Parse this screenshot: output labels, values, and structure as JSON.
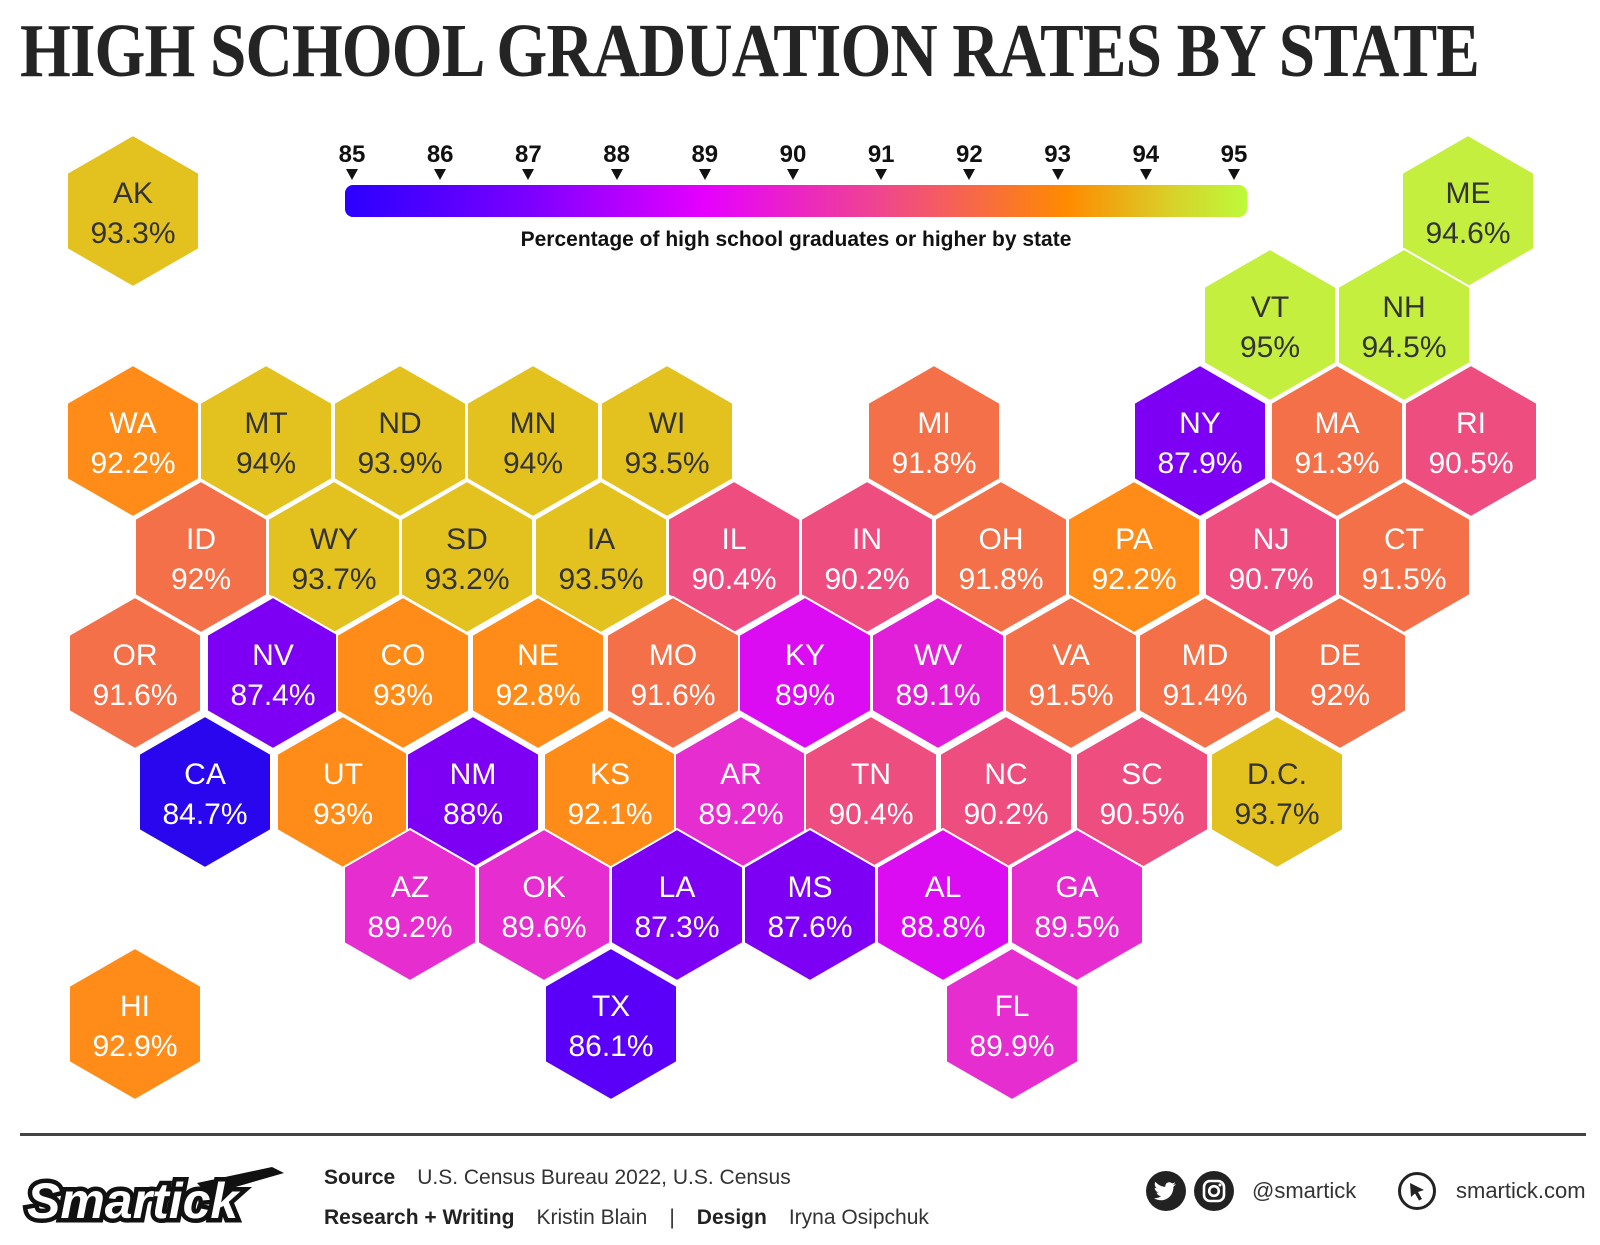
{
  "title": "HIGH SCHOOL GRADUATION RATES BY STATE",
  "legend": {
    "ticks": [
      "85",
      "86",
      "87",
      "88",
      "89",
      "90",
      "91",
      "92",
      "93",
      "94",
      "95"
    ],
    "caption": "Percentage of high school graduates or higher by state",
    "color_stops": [
      "#2a00ff",
      "#7a00ff",
      "#e600ff",
      "#f0488a",
      "#ff8a00",
      "#d7d32a",
      "#bdfa3a"
    ]
  },
  "states": [
    {
      "abbr": "AK",
      "value": "93.3%",
      "color": "#e3c21f"
    },
    {
      "abbr": "ME",
      "value": "94.6%",
      "color": "#c4ef3e"
    },
    {
      "abbr": "VT",
      "value": "95%",
      "color": "#c4ef3e"
    },
    {
      "abbr": "NH",
      "value": "94.5%",
      "color": "#c4ef3e"
    },
    {
      "abbr": "WA",
      "value": "92.2%",
      "color": "#ff8c19"
    },
    {
      "abbr": "MT",
      "value": "94%",
      "color": "#e3c21f"
    },
    {
      "abbr": "ND",
      "value": "93.9%",
      "color": "#e3c21f"
    },
    {
      "abbr": "MN",
      "value": "94%",
      "color": "#e3c21f"
    },
    {
      "abbr": "WI",
      "value": "93.5%",
      "color": "#e3c21f"
    },
    {
      "abbr": "MI",
      "value": "91.8%",
      "color": "#f47049"
    },
    {
      "abbr": "NY",
      "value": "87.9%",
      "color": "#7d00f4"
    },
    {
      "abbr": "MA",
      "value": "91.3%",
      "color": "#f47049"
    },
    {
      "abbr": "RI",
      "value": "90.5%",
      "color": "#ee4d80"
    },
    {
      "abbr": "ID",
      "value": "92%",
      "color": "#f47049"
    },
    {
      "abbr": "WY",
      "value": "93.7%",
      "color": "#e3c21f"
    },
    {
      "abbr": "SD",
      "value": "93.2%",
      "color": "#e3c21f"
    },
    {
      "abbr": "IA",
      "value": "93.5%",
      "color": "#e3c21f"
    },
    {
      "abbr": "IL",
      "value": "90.4%",
      "color": "#ee4d80"
    },
    {
      "abbr": "IN",
      "value": "90.2%",
      "color": "#ee4d80"
    },
    {
      "abbr": "OH",
      "value": "91.8%",
      "color": "#f47049"
    },
    {
      "abbr": "PA",
      "value": "92.2%",
      "color": "#ff8c19"
    },
    {
      "abbr": "NJ",
      "value": "90.7%",
      "color": "#ee4d80"
    },
    {
      "abbr": "CT",
      "value": "91.5%",
      "color": "#f47049"
    },
    {
      "abbr": "OR",
      "value": "91.6%",
      "color": "#f47049"
    },
    {
      "abbr": "NV",
      "value": "87.4%",
      "color": "#7d00f4"
    },
    {
      "abbr": "CO",
      "value": "93%",
      "color": "#ff8c19"
    },
    {
      "abbr": "NE",
      "value": "92.8%",
      "color": "#ff8c19"
    },
    {
      "abbr": "MO",
      "value": "91.6%",
      "color": "#f47049"
    },
    {
      "abbr": "KY",
      "value": "89%",
      "color": "#dc0cf2"
    },
    {
      "abbr": "WV",
      "value": "89.1%",
      "color": "#e21fd8"
    },
    {
      "abbr": "VA",
      "value": "91.5%",
      "color": "#f47049"
    },
    {
      "abbr": "MD",
      "value": "91.4%",
      "color": "#f47049"
    },
    {
      "abbr": "DE",
      "value": "92%",
      "color": "#f47049"
    },
    {
      "abbr": "CA",
      "value": "84.7%",
      "color": "#2a06ee"
    },
    {
      "abbr": "UT",
      "value": "93%",
      "color": "#ff8c19"
    },
    {
      "abbr": "NM",
      "value": "88%",
      "color": "#7d00f4"
    },
    {
      "abbr": "KS",
      "value": "92.1%",
      "color": "#ff8c19"
    },
    {
      "abbr": "AR",
      "value": "89.2%",
      "color": "#e62dd0"
    },
    {
      "abbr": "TN",
      "value": "90.4%",
      "color": "#ee4d80"
    },
    {
      "abbr": "NC",
      "value": "90.2%",
      "color": "#ee4d80"
    },
    {
      "abbr": "SC",
      "value": "90.5%",
      "color": "#ee4d80"
    },
    {
      "abbr": "D.C.",
      "value": "93.7%",
      "color": "#e3c21f"
    },
    {
      "abbr": "AZ",
      "value": "89.2%",
      "color": "#e62dd0"
    },
    {
      "abbr": "OK",
      "value": "89.6%",
      "color": "#e62dd0"
    },
    {
      "abbr": "LA",
      "value": "87.3%",
      "color": "#7d00f4"
    },
    {
      "abbr": "MS",
      "value": "87.6%",
      "color": "#7d00f4"
    },
    {
      "abbr": "AL",
      "value": "88.8%",
      "color": "#dc0cf2"
    },
    {
      "abbr": "GA",
      "value": "89.5%",
      "color": "#e62dd0"
    },
    {
      "abbr": "HI",
      "value": "92.9%",
      "color": "#ff8c19"
    },
    {
      "abbr": "TX",
      "value": "86.1%",
      "color": "#5a00f8"
    },
    {
      "abbr": "FL",
      "value": "89.9%",
      "color": "#e62dd0"
    }
  ],
  "footer": {
    "brand": "Smartick",
    "source_label": "Source",
    "source_text": "U.S. Census Bureau 2022, U.S. Census",
    "research_label": "Research + Writing",
    "research_text": "Kristin Blain",
    "separator": "|",
    "design_label": "Design",
    "design_text": "Iryna Osipchuk",
    "handle": "@smartick",
    "site": "smartick.com",
    "social_icons": [
      "twitter-icon",
      "instagram-icon"
    ],
    "site_icon": "cursor-icon"
  }
}
